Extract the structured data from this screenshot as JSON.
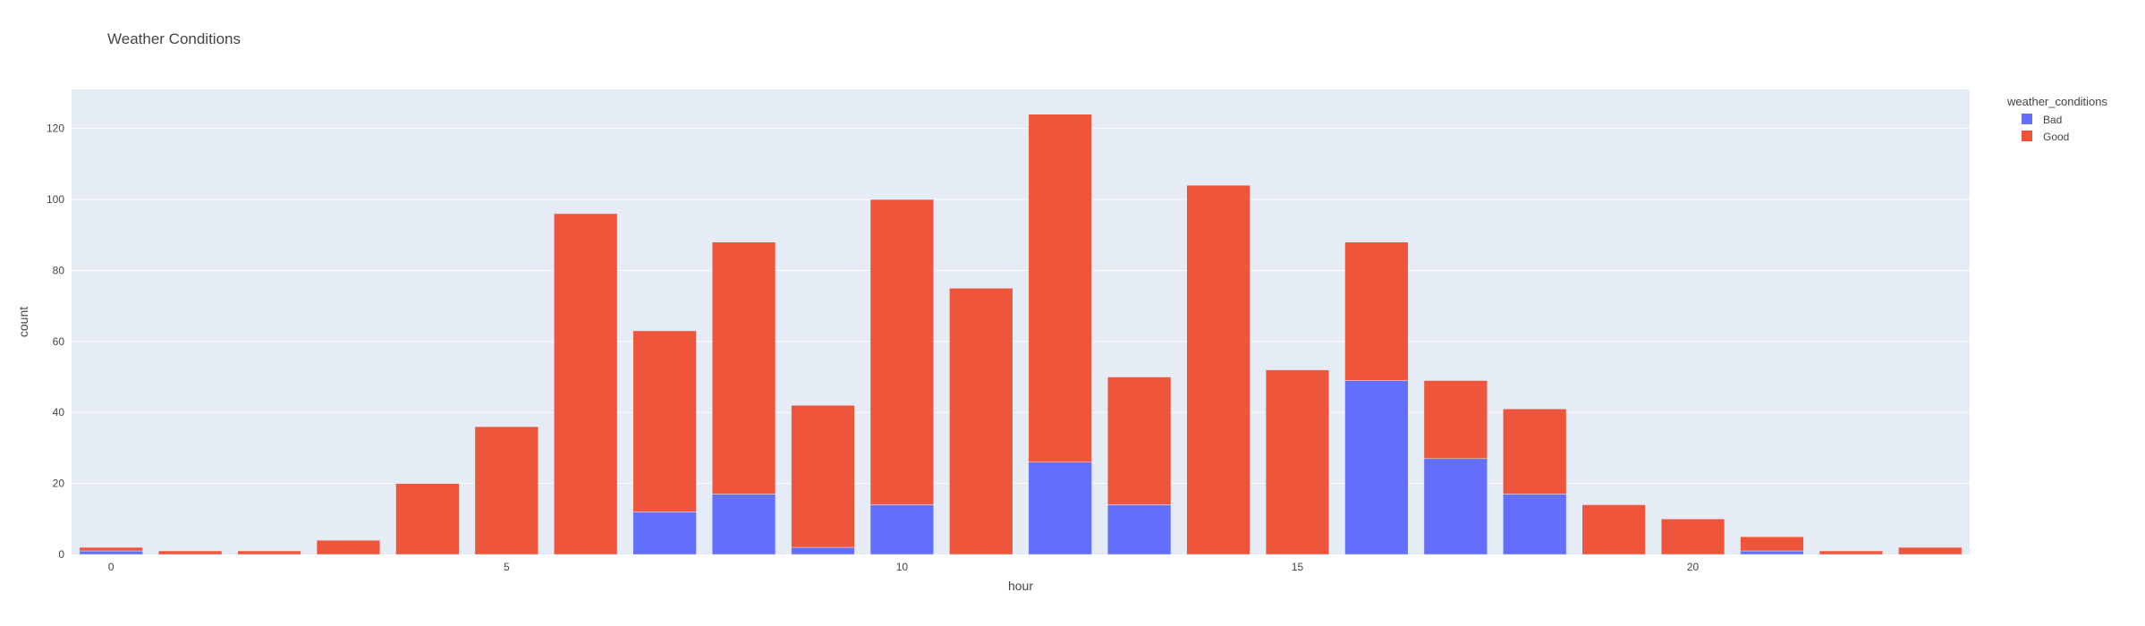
{
  "chart_data": {
    "type": "bar",
    "title": "Weather Conditions",
    "xlabel": "hour",
    "ylabel": "count",
    "x": [
      0,
      1,
      2,
      3,
      4,
      5,
      6,
      7,
      8,
      9,
      10,
      11,
      12,
      13,
      14,
      15,
      16,
      17,
      18,
      19,
      20,
      21,
      22,
      23
    ],
    "xticks": [
      0,
      5,
      10,
      15,
      20
    ],
    "yticks": [
      0,
      20,
      40,
      60,
      80,
      100,
      120
    ],
    "ylim": [
      0,
      131
    ],
    "xlim": [
      -0.5,
      23.5
    ],
    "barmode": "stack",
    "grid": true,
    "legend": {
      "title": "weather_conditions",
      "placement": "top-right"
    },
    "series": [
      {
        "name": "Bad",
        "color": "#636efa",
        "values": [
          1,
          0,
          0,
          0,
          0,
          0,
          0,
          12,
          17,
          2,
          14,
          0,
          26,
          14,
          0,
          0,
          49,
          27,
          17,
          0,
          0,
          1,
          0,
          0
        ]
      },
      {
        "name": "Good",
        "color": "#ef553b",
        "values": [
          1,
          1,
          1,
          4,
          20,
          36,
          96,
          51,
          71,
          40,
          86,
          75,
          98,
          36,
          104,
          52,
          39,
          22,
          24,
          14,
          10,
          4,
          1,
          2
        ]
      }
    ]
  }
}
